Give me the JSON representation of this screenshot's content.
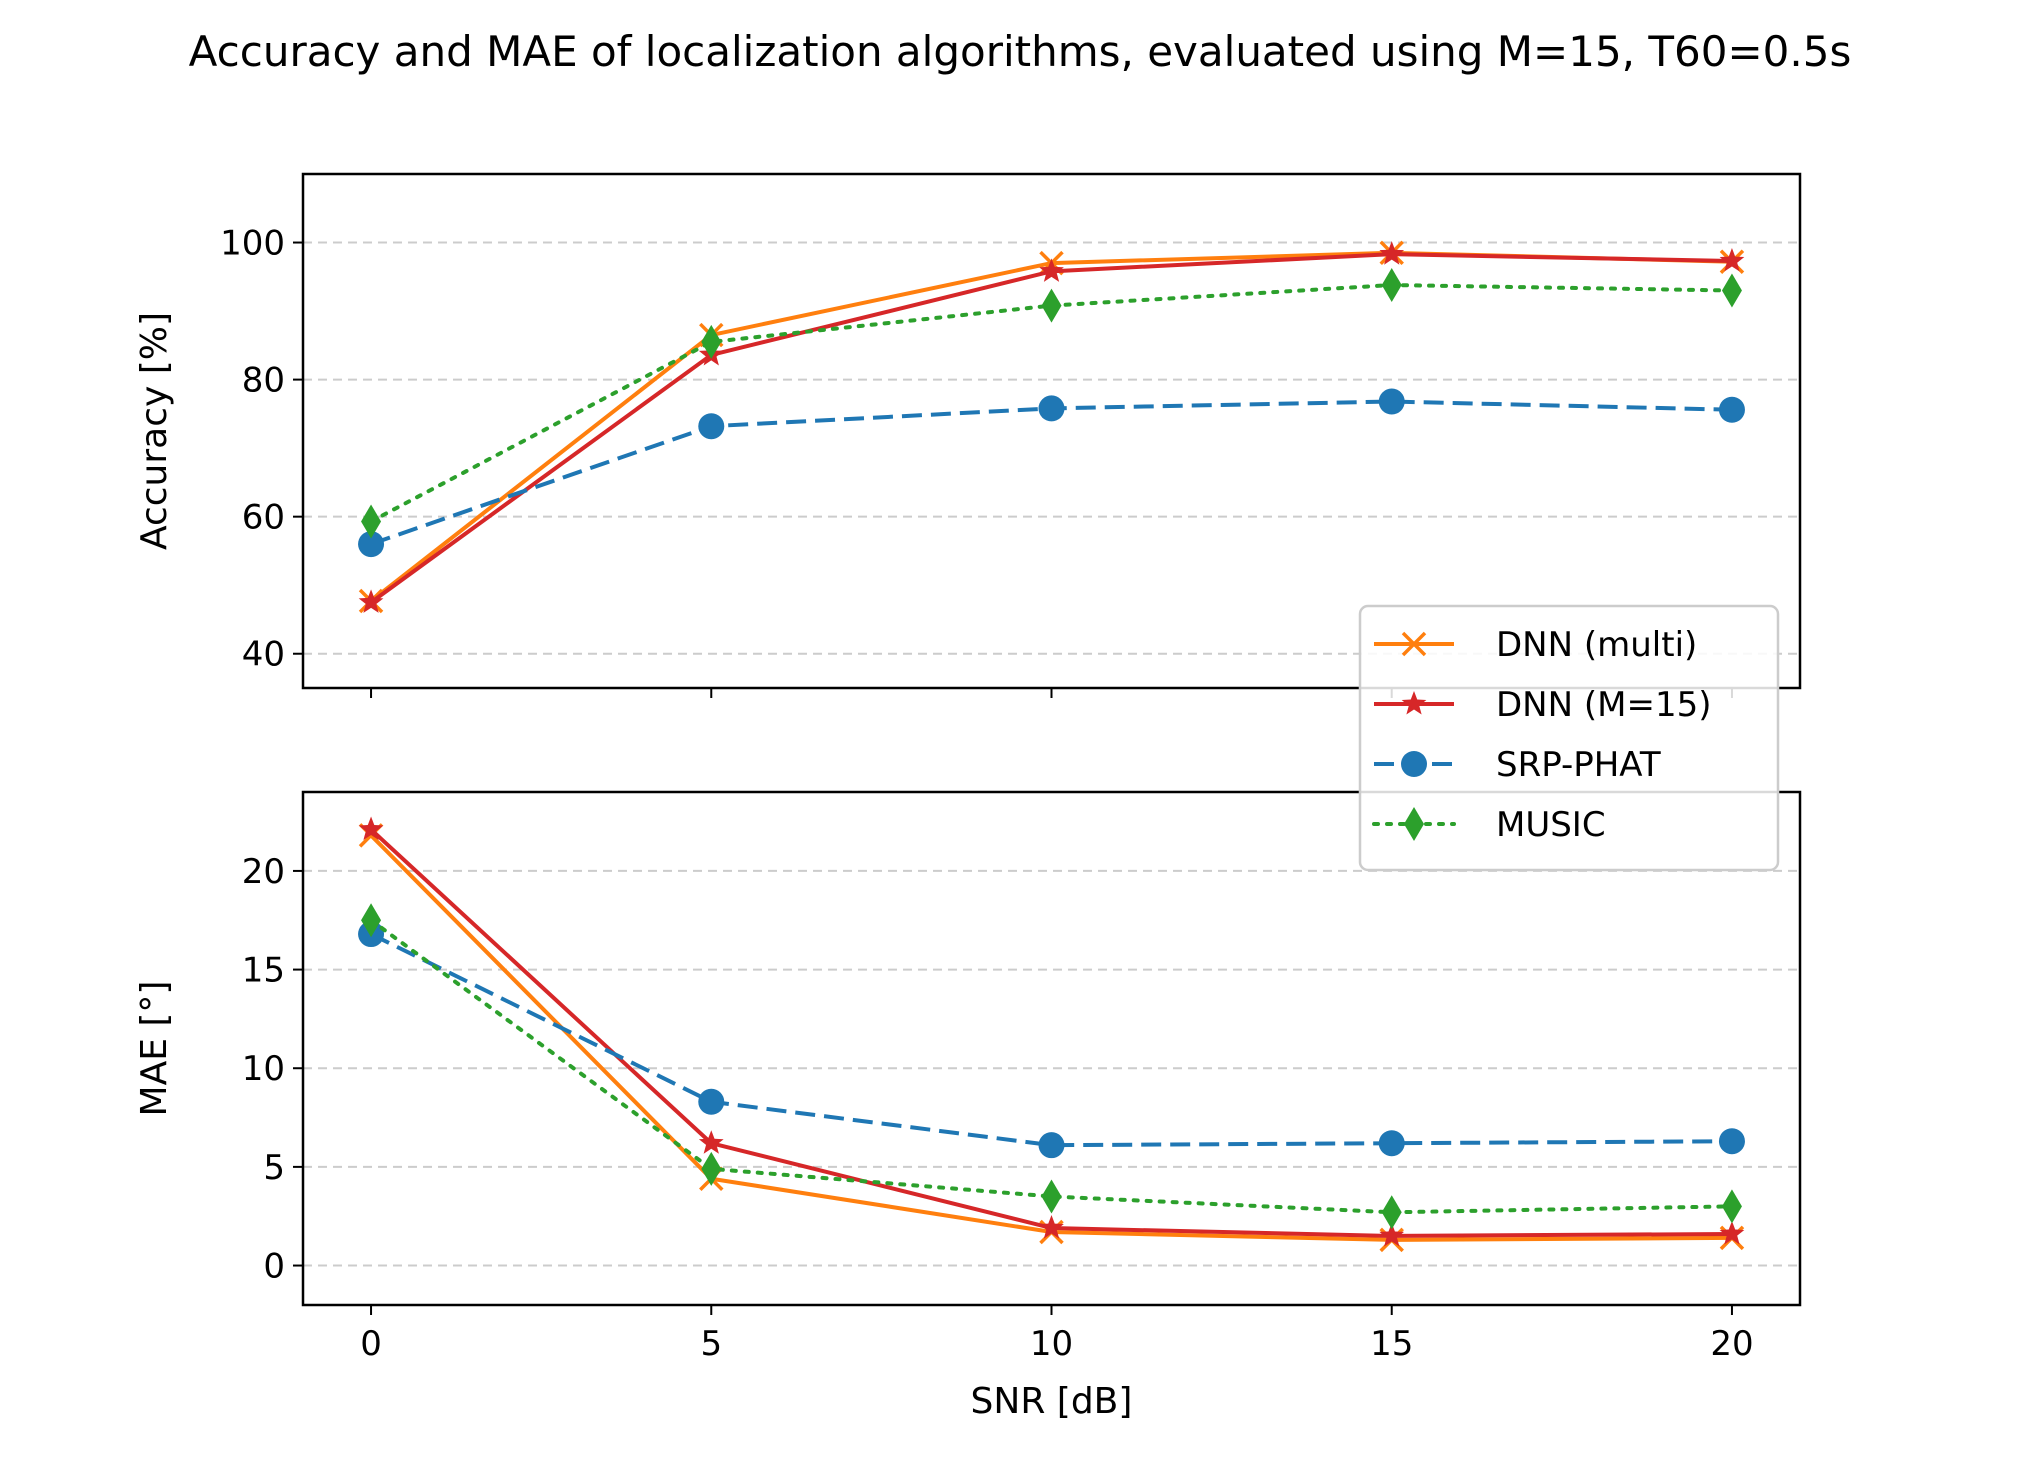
{
  "chart_data": [
    {
      "type": "line",
      "panel": "top",
      "title": "Accuracy and MAE of localization algorithms, evaluated using M=15, T60=0.5s",
      "xlabel": "",
      "ylabel": "Accuracy [%]",
      "x": [
        0,
        5,
        10,
        15,
        20
      ],
      "xlim": [
        -1,
        21
      ],
      "ylim": [
        35,
        110
      ],
      "yticks": [
        40,
        60,
        80,
        100
      ],
      "grid": "y dashed",
      "series": [
        {
          "name": "DNN (multi)",
          "color": "#ff7f0e",
          "linestyle": "solid",
          "marker": "x",
          "values": [
            47.7,
            86.5,
            97.0,
            98.5,
            97.2
          ]
        },
        {
          "name": "DNN (M=15)",
          "color": "#d62728",
          "linestyle": "solid",
          "marker": "star",
          "values": [
            47.5,
            83.6,
            95.8,
            98.3,
            97.3
          ]
        },
        {
          "name": "SRP-PHAT",
          "color": "#1f77b4",
          "linestyle": "dashed",
          "marker": "circle",
          "values": [
            56.0,
            73.2,
            75.8,
            76.8,
            75.6
          ]
        },
        {
          "name": "MUSIC",
          "color": "#2ca02c",
          "linestyle": "dotted",
          "marker": "diamond",
          "values": [
            59.3,
            85.5,
            90.8,
            93.8,
            93.0
          ]
        }
      ]
    },
    {
      "type": "line",
      "panel": "bottom",
      "xlabel": "SNR [dB]",
      "ylabel": "MAE [°]",
      "x": [
        0,
        5,
        10,
        15,
        20
      ],
      "xticks": [
        0,
        5,
        10,
        15,
        20
      ],
      "xlim": [
        -1,
        21
      ],
      "ylim": [
        -2,
        24
      ],
      "yticks": [
        0,
        5,
        10,
        15,
        20
      ],
      "grid": "y dashed",
      "legend": {
        "placement": "upper-right",
        "entries": [
          "DNN (multi)",
          "DNN (M=15)",
          "SRP-PHAT",
          "MUSIC"
        ]
      },
      "series": [
        {
          "name": "DNN (multi)",
          "color": "#ff7f0e",
          "linestyle": "solid",
          "marker": "x",
          "values": [
            21.8,
            4.4,
            1.7,
            1.3,
            1.4
          ]
        },
        {
          "name": "DNN (M=15)",
          "color": "#d62728",
          "linestyle": "solid",
          "marker": "star",
          "values": [
            22.1,
            6.2,
            1.9,
            1.5,
            1.6
          ]
        },
        {
          "name": "SRP-PHAT",
          "color": "#1f77b4",
          "linestyle": "dashed",
          "marker": "circle",
          "values": [
            16.8,
            8.3,
            6.1,
            6.2,
            6.3
          ]
        },
        {
          "name": "MUSIC",
          "color": "#2ca02c",
          "linestyle": "dotted",
          "marker": "diamond",
          "values": [
            17.5,
            4.9,
            3.5,
            2.7,
            3.0
          ]
        }
      ]
    }
  ]
}
